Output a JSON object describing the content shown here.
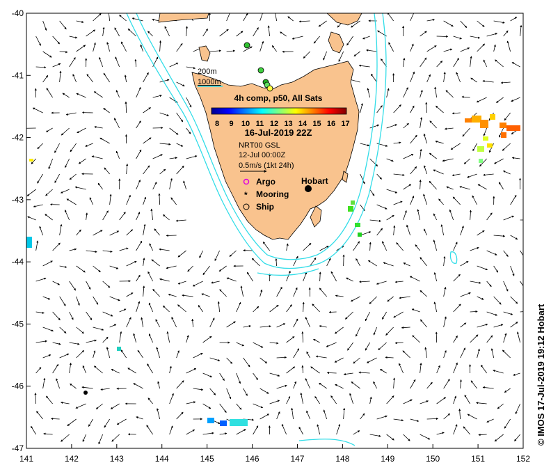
{
  "map": {
    "title": "4h comp, p50, All Sats",
    "date": "16-Jul-2019 22Z",
    "colorbar_ticks": [
      "8",
      "9",
      "10",
      "11",
      "12",
      "13",
      "14",
      "15",
      "16",
      "17"
    ],
    "altimetry_label": "NRT00 GSL",
    "altimetry_date": "12-Jul 00:00Z",
    "current_scale": "0.5m/s (1kt 24h)",
    "isobath_200": "200m",
    "isobath_1000": "1000m",
    "city": "Hobart",
    "legend": {
      "argo": "Argo",
      "mooring": "Mooring",
      "ship": "Ship"
    },
    "credit": "© IMOS 17-Jul-2019 19:12 Hobart",
    "x_ticks": [
      "141",
      "142",
      "143",
      "144",
      "145",
      "146",
      "147",
      "148",
      "149",
      "150",
      "151",
      "152"
    ],
    "y_ticks": [
      "-40",
      "-41",
      "-42",
      "-43",
      "-44",
      "-45",
      "-46",
      "-47"
    ],
    "colors": {
      "land": "#f9c38e",
      "isobath": "#33dde8",
      "colormap": [
        "#00008f",
        "#0000ff",
        "#0080ff",
        "#00ffff",
        "#80ff80",
        "#ffff00",
        "#ff8000",
        "#ff0000",
        "#800000"
      ]
    }
  }
}
